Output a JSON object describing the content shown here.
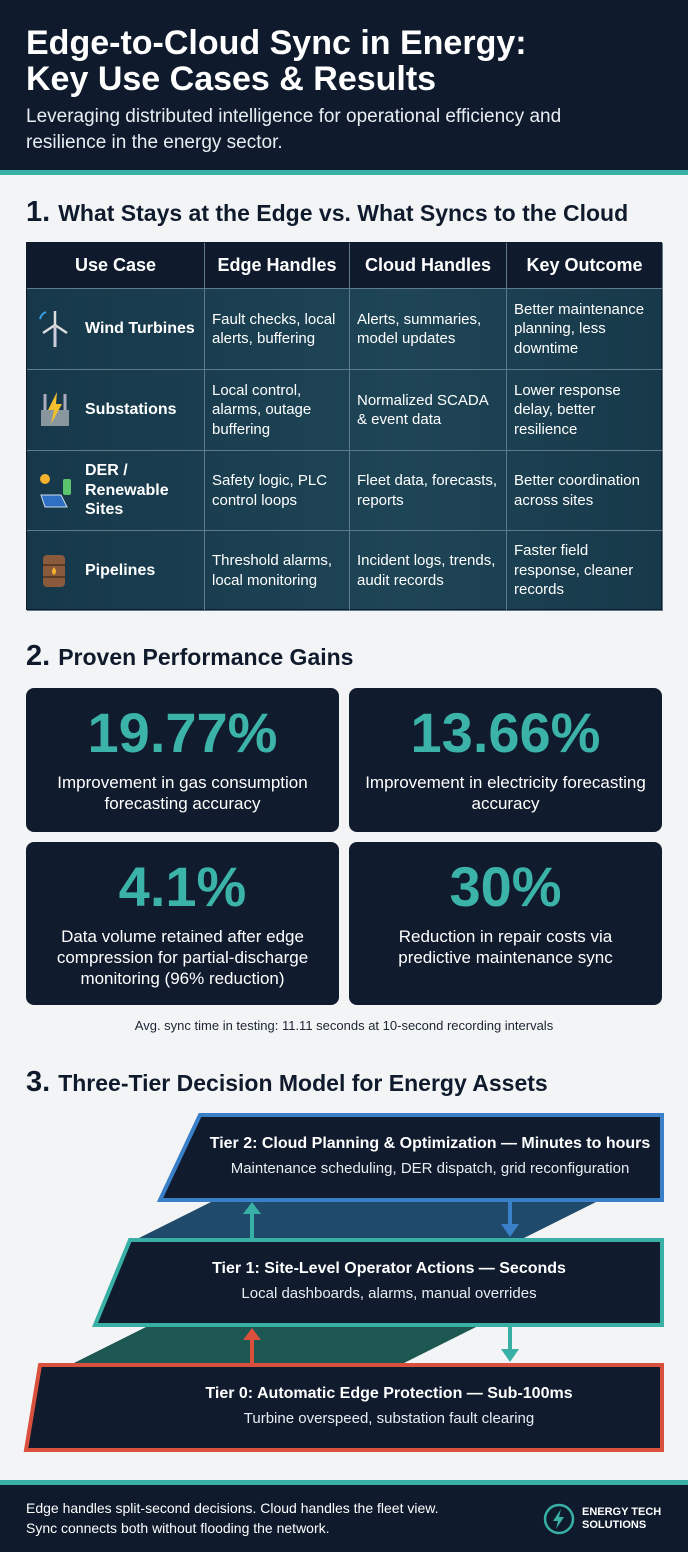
{
  "header": {
    "title_lines": [
      "Edge-to-Cloud Sync in Energy:",
      "Key Use Cases & Results"
    ],
    "subtitle": "Leveraging distributed intelligence for operational efficiency and resilience in the energy sector."
  },
  "section1": {
    "number": "1.",
    "title": "What Stays at the Edge vs. What Syncs to the Cloud",
    "table": {
      "headers": [
        "Use Case",
        "Edge Handles",
        "Cloud Handles",
        "Key Outcome"
      ],
      "rows": [
        [
          "Wind Turbines",
          "Fault checks, local alerts, buffering",
          "Alerts, summaries, model updates",
          "Better maintenance planning, less downtime"
        ],
        [
          "Substations",
          "Local control, alarms, outage buffering",
          "Normalized SCADA & event data",
          "Lower response delay, better resilience"
        ],
        [
          "DER / Renewable Sites",
          "Safety logic, PLC control loops",
          "Fleet data, forecasts, reports",
          "Better coordination across sites"
        ],
        [
          "Pipelines",
          "Threshold alarms, local monitoring",
          "Incident logs, trends, audit records",
          "Faster field response, cleaner records"
        ]
      ]
    }
  },
  "section2": {
    "number": "2.",
    "title": "Proven Performance Gains",
    "stats": [
      {
        "value": "19.77%",
        "label": "Improvement in gas consumption forecasting accuracy"
      },
      {
        "value": "13.66%",
        "label": "Improvement in electricity forecasting accuracy"
      },
      {
        "value": "4.1%",
        "label": "Data volume retained after edge compression for partial-discharge monitoring (96% reduction)"
      },
      {
        "value": "30%",
        "label": "Reduction in repair costs via predictive maintenance sync"
      }
    ],
    "note": "Avg. sync time in testing: 11.11 seconds at 10-second recording intervals"
  },
  "section3": {
    "number": "3.",
    "title": "Three-Tier Decision Model for Energy Assets",
    "tiers": [
      {
        "title": "Tier 2: Cloud Planning & Optimization — Minutes to hours",
        "description": "Maintenance scheduling, DER dispatch, grid reconfiguration"
      },
      {
        "title": "Tier 1: Site-Level Operator Actions — Seconds",
        "description": "Local dashboards, alarms, manual overrides"
      },
      {
        "title": "Tier 0: Automatic Edge Protection — Sub-100ms",
        "description": "Turbine overspeed, substation fault clearing"
      }
    ]
  },
  "footer": {
    "lines": [
      "Edge handles split-second decisions. Cloud handles the fleet view.",
      "Sync connects both without flooding the network."
    ],
    "logo": [
      "ENERGY TECH",
      "SOLUTIONS"
    ]
  }
}
